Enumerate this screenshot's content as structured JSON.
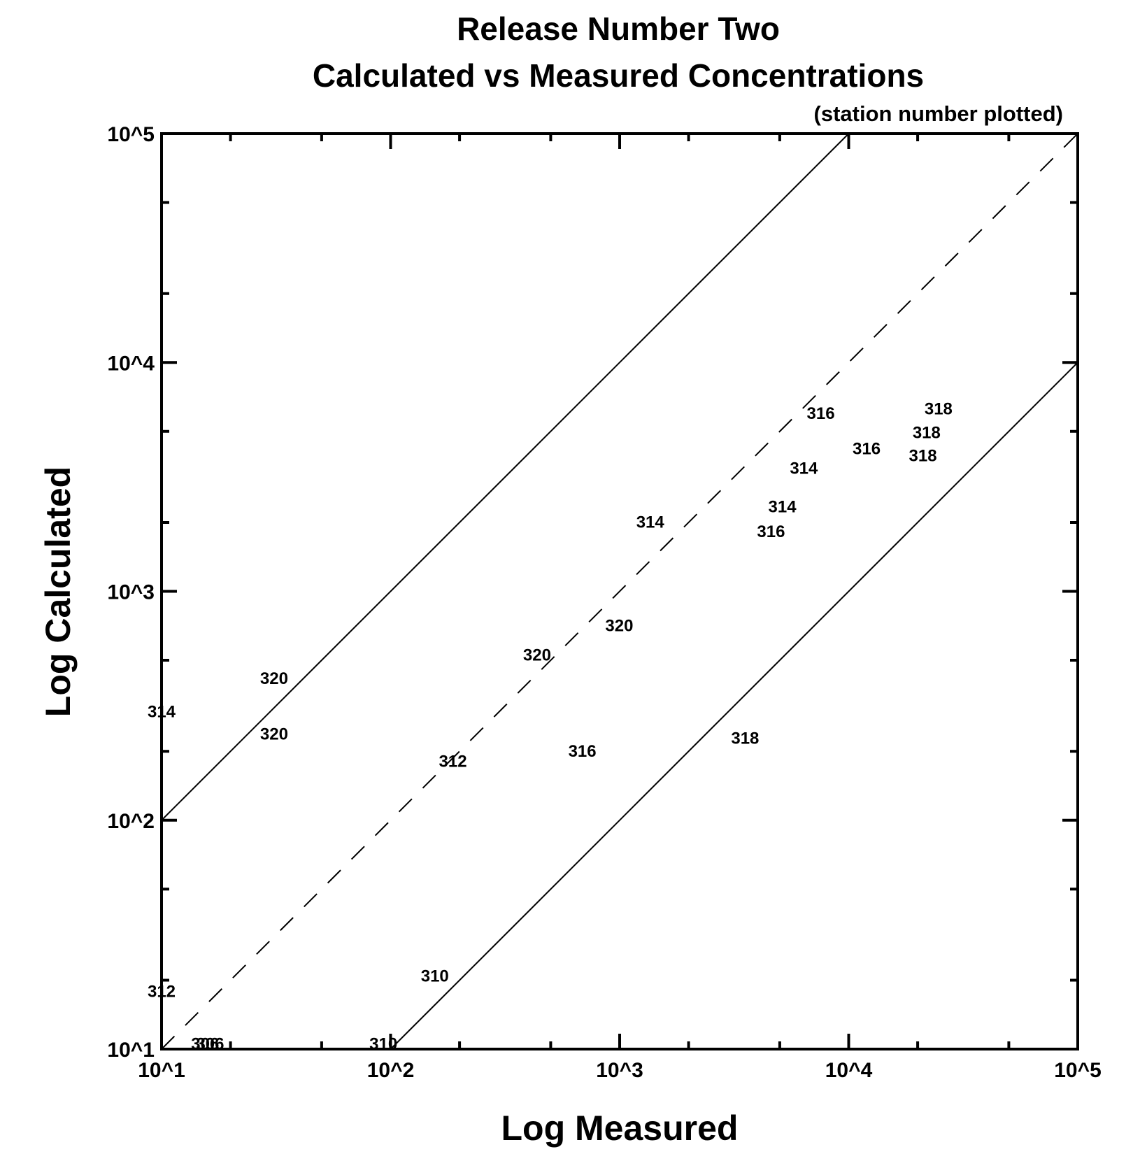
{
  "chart_data": {
    "type": "scatter",
    "title": [
      "Release Number Two",
      "Calculated vs Measured Concentrations"
    ],
    "subtitle": "(station number plotted)",
    "xlabel": "Log Measured",
    "ylabel": "Log Calculated",
    "xscale": "log",
    "yscale": "log",
    "xlim": [
      10,
      100000
    ],
    "ylim": [
      10,
      100000
    ],
    "xticks": [
      10,
      100,
      1000,
      10000,
      100000
    ],
    "yticks": [
      10,
      100,
      1000,
      10000,
      100000
    ],
    "xtick_labels": [
      "10^1",
      "10^2",
      "10^3",
      "10^4",
      "10^5"
    ],
    "ytick_labels": [
      "10^1",
      "10^2",
      "10^3",
      "10^4",
      "10^5"
    ],
    "minor_ticks_per_decade": [
      2,
      5
    ],
    "grid": false,
    "marker": "station number text",
    "reference_lines": [
      {
        "name": "factor-10-over",
        "style": "solid",
        "ratio": 10
      },
      {
        "name": "one-to-one",
        "style": "dashed",
        "ratio": 1
      },
      {
        "name": "factor-10-under",
        "style": "solid",
        "ratio": 0.1
      }
    ],
    "points": [
      {
        "label": "316",
        "x": 7550,
        "y": 6040
      },
      {
        "label": "318",
        "x": 24660,
        "y": 6310
      },
      {
        "label": "318",
        "x": 21880,
        "y": 4980
      },
      {
        "label": "316",
        "x": 11970,
        "y": 4230
      },
      {
        "label": "318",
        "x": 21080,
        "y": 3950
      },
      {
        "label": "314",
        "x": 6370,
        "y": 3480
      },
      {
        "label": "314",
        "x": 5130,
        "y": 2360
      },
      {
        "label": "316",
        "x": 4580,
        "y": 1840
      },
      {
        "label": "314",
        "x": 1360,
        "y": 2020
      },
      {
        "label": "320",
        "x": 996,
        "y": 713
      },
      {
        "label": "320",
        "x": 436,
        "y": 530
      },
      {
        "label": "320",
        "x": 31,
        "y": 420
      },
      {
        "label": "320",
        "x": 31,
        "y": 240
      },
      {
        "label": "314",
        "x": 10,
        "y": 300
      },
      {
        "label": "316",
        "x": 687,
        "y": 202
      },
      {
        "label": "318",
        "x": 3530,
        "y": 230
      },
      {
        "label": "312",
        "x": 187,
        "y": 182
      },
      {
        "label": "310",
        "x": 156,
        "y": 21
      },
      {
        "label": "312",
        "x": 10,
        "y": 18
      },
      {
        "label": "306",
        "x": 15.5,
        "y": 10.6
      },
      {
        "label": "306",
        "x": 16.3,
        "y": 10.6
      },
      {
        "label": "310",
        "x": 93,
        "y": 10.6
      }
    ]
  }
}
